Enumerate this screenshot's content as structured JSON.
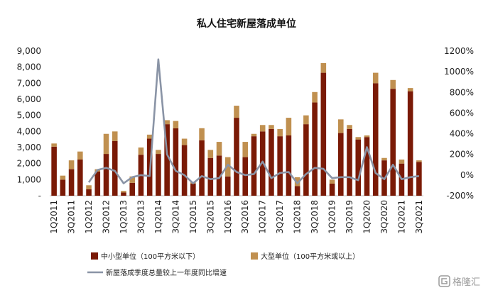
{
  "chart_data": {
    "type": "bar",
    "title": "私人住宅新屋落成单位",
    "categories": [
      "1Q2011",
      "2Q2011",
      "3Q2011",
      "4Q2011",
      "1Q2012",
      "2Q2012",
      "3Q2012",
      "4Q2012",
      "1Q2013",
      "2Q2013",
      "3Q2013",
      "4Q2013",
      "1Q2014",
      "2Q2014",
      "3Q2014",
      "4Q2014",
      "1Q2015",
      "2Q2015",
      "3Q2015",
      "4Q2015",
      "1Q2016",
      "2Q2016",
      "3Q2016",
      "4Q2016",
      "1Q2017",
      "2Q2017",
      "3Q2017",
      "4Q2017",
      "1Q2018",
      "2Q2018",
      "3Q2018",
      "4Q2018",
      "1Q2019",
      "2Q2019",
      "3Q2019",
      "4Q2019",
      "1Q2020",
      "2Q2020",
      "3Q2020",
      "4Q2020",
      "1Q2021",
      "2Q2021",
      "3Q2021"
    ],
    "x_tick_labels": [
      "1Q2011",
      "3Q2011",
      "1Q2012",
      "3Q2012",
      "1Q2013",
      "3Q2013",
      "1Q2014",
      "3Q2014",
      "1Q2015",
      "3Q2015",
      "1Q2016",
      "3Q2016",
      "1Q2017",
      "3Q2017",
      "1Q2018",
      "3Q2018",
      "1Q2019",
      "3Q2019",
      "1Q2020",
      "3Q2020",
      "1Q2021",
      "3Q2021"
    ],
    "series": [
      {
        "name": "中小型单位（100平方米以下）",
        "type": "bar",
        "stack": "units",
        "axis": "left",
        "color": "#7a1a06",
        "values": [
          3050,
          1000,
          1650,
          2250,
          400,
          1500,
          2600,
          3400,
          200,
          800,
          2550,
          3550,
          2600,
          4450,
          4200,
          3150,
          750,
          3450,
          2350,
          2500,
          1200,
          4850,
          2400,
          3700,
          4000,
          4150,
          3700,
          3750,
          600,
          4450,
          5800,
          7650,
          750,
          3900,
          4150,
          3500,
          3650,
          7000,
          2200,
          6650,
          2000,
          6500,
          2100
        ]
      },
      {
        "name": "大型单位（100平方米或以上）",
        "type": "bar",
        "stack": "units",
        "axis": "left",
        "color": "#c09050",
        "values": [
          200,
          250,
          550,
          500,
          250,
          150,
          1250,
          600,
          100,
          400,
          450,
          250,
          250,
          250,
          450,
          400,
          100,
          750,
          500,
          850,
          1200,
          750,
          950,
          150,
          400,
          250,
          450,
          1100,
          550,
          550,
          650,
          600,
          250,
          850,
          250,
          150,
          100,
          650,
          150,
          550,
          250,
          200,
          100
        ]
      },
      {
        "name": "新屋落成季度总量较上一年度同比增速",
        "type": "line",
        "axis": "right",
        "color": "#8a94a6",
        "values": [
          null,
          null,
          null,
          null,
          -70,
          50,
          70,
          40,
          -80,
          -20,
          0,
          -10,
          1120,
          200,
          40,
          0,
          -80,
          -10,
          -40,
          -30,
          100,
          30,
          0,
          10,
          130,
          -30,
          20,
          30,
          -80,
          10,
          70,
          60,
          -30,
          -20,
          -20,
          -50,
          270,
          20,
          -40,
          100,
          -40,
          -20,
          -10
        ]
      }
    ],
    "ylim_left": [
      0,
      9000
    ],
    "yticks_left": [
      "-",
      "1,000",
      "2,000",
      "3,000",
      "4,000",
      "5,000",
      "6,000",
      "7,000",
      "8,000",
      "9,000"
    ],
    "ylim_right": [
      -200,
      1200
    ],
    "yticks_right": [
      "-200%",
      "0%",
      "200%",
      "400%",
      "600%",
      "800%",
      "1000%",
      "1200%"
    ],
    "grid": false,
    "legend_position": "bottom",
    "legend": [
      "中小型单位（100平方米以下）",
      "大型单位（100平方米或以上）",
      "新屋落成季度总量较上一年度同比增速"
    ]
  },
  "colors": {
    "small": "#7a1a06",
    "large": "#c09050",
    "line": "#8a94a6"
  },
  "watermark": {
    "icon": "gelonghui-logo-icon",
    "text": "格隆汇"
  }
}
